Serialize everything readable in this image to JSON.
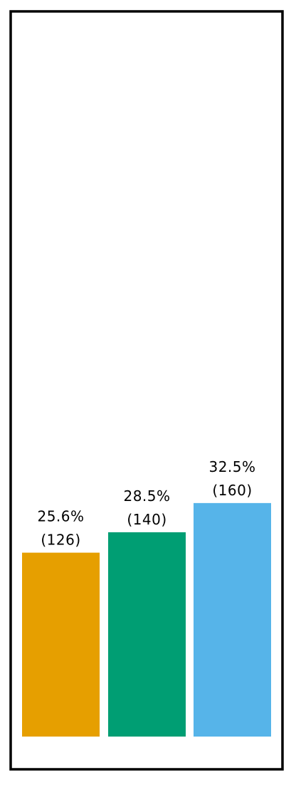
{
  "chart_data": {
    "type": "bar",
    "ylim": [
      0,
      492
    ],
    "grid": false,
    "legend": "none",
    "bars": [
      {
        "value": 126,
        "percent_label": "25.6%",
        "count_label": "(126)",
        "color": "#E69F00"
      },
      {
        "value": 140,
        "percent_label": "28.5%",
        "count_label": "(140)",
        "color": "#009E73"
      },
      {
        "value": 160,
        "percent_label": "32.5%",
        "count_label": "(160)",
        "color": "#56B4E9"
      }
    ]
  }
}
